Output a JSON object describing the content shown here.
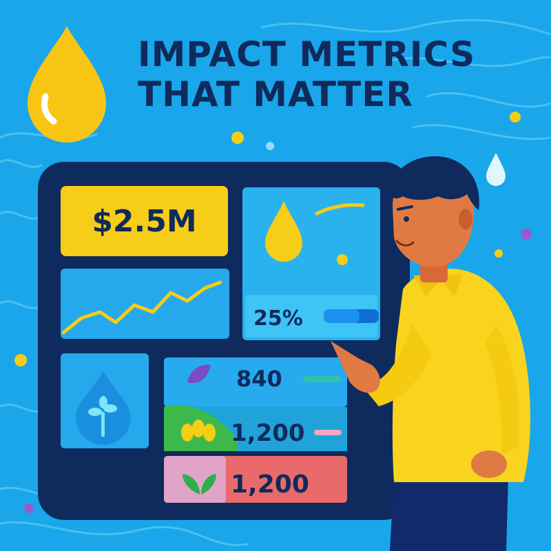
{
  "title": {
    "line1": "IMPACT METRICS",
    "line2": "THAT MATTER"
  },
  "dashboard": {
    "funding_value": "$2.5M",
    "percent_value": "25%",
    "progress_fraction": 0.65,
    "stats": [
      {
        "value": "840",
        "icon": "leaf-icon"
      },
      {
        "value": "1,200",
        "icon": "flower-icon"
      },
      {
        "value": "1,200",
        "icon": "sprout-icon"
      }
    ]
  },
  "colors": {
    "background": "#1aa6ea",
    "board": "#0f2a5c",
    "accent_yellow": "#f6cd17",
    "shirt": "#f8d41e"
  }
}
